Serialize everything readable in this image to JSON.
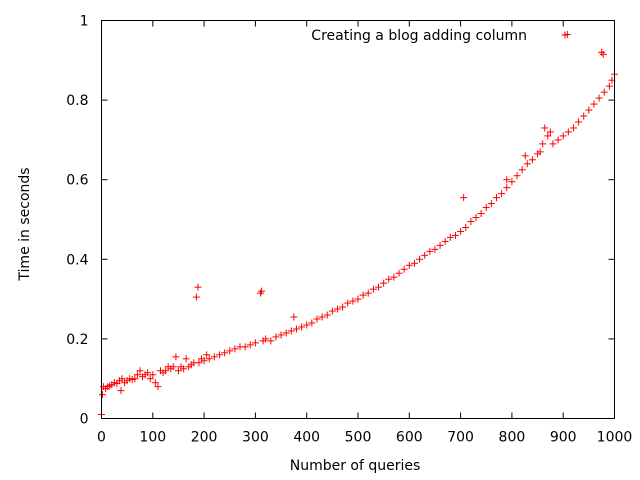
{
  "chart_data": {
    "type": "scatter",
    "title": "",
    "xlabel": "Number of queries",
    "ylabel": "Time in seconds",
    "xlim": [
      0,
      1000
    ],
    "ylim": [
      0,
      1
    ],
    "x_ticks": [
      0,
      100,
      200,
      300,
      400,
      500,
      600,
      700,
      800,
      900,
      1000
    ],
    "y_ticks": [
      0,
      0.2,
      0.4,
      0.6,
      0.8,
      1
    ],
    "x_tick_labels": [
      "0",
      "100",
      "200",
      "300",
      "400",
      "500",
      "600",
      "700",
      "800",
      "900",
      "1000"
    ],
    "y_tick_labels": [
      "0",
      "0.2",
      "0.4",
      "0.6",
      "0.8",
      "1"
    ],
    "grid": false,
    "legend_position": "top-right",
    "marker": "plus",
    "series": [
      {
        "name": "Creating a blog adding column",
        "color": "#ff0000",
        "points": [
          [
            0,
            0.01
          ],
          [
            2,
            0.06
          ],
          [
            4,
            0.08
          ],
          [
            8,
            0.075
          ],
          [
            12,
            0.08
          ],
          [
            16,
            0.082
          ],
          [
            20,
            0.085
          ],
          [
            25,
            0.09
          ],
          [
            30,
            0.088
          ],
          [
            35,
            0.095
          ],
          [
            38,
            0.07
          ],
          [
            40,
            0.1
          ],
          [
            45,
            0.09
          ],
          [
            50,
            0.095
          ],
          [
            55,
            0.1
          ],
          [
            60,
            0.098
          ],
          [
            65,
            0.1
          ],
          [
            70,
            0.11
          ],
          [
            75,
            0.12
          ],
          [
            80,
            0.105
          ],
          [
            85,
            0.11
          ],
          [
            90,
            0.115
          ],
          [
            95,
            0.1
          ],
          [
            100,
            0.11
          ],
          [
            105,
            0.09
          ],
          [
            110,
            0.08
          ],
          [
            115,
            0.12
          ],
          [
            120,
            0.115
          ],
          [
            125,
            0.12
          ],
          [
            130,
            0.13
          ],
          [
            135,
            0.125
          ],
          [
            140,
            0.13
          ],
          [
            145,
            0.155
          ],
          [
            150,
            0.12
          ],
          [
            155,
            0.13
          ],
          [
            160,
            0.125
          ],
          [
            165,
            0.15
          ],
          [
            170,
            0.13
          ],
          [
            175,
            0.135
          ],
          [
            180,
            0.14
          ],
          [
            185,
            0.305
          ],
          [
            188,
            0.33
          ],
          [
            190,
            0.14
          ],
          [
            195,
            0.15
          ],
          [
            200,
            0.145
          ],
          [
            205,
            0.16
          ],
          [
            210,
            0.15
          ],
          [
            220,
            0.155
          ],
          [
            230,
            0.16
          ],
          [
            240,
            0.165
          ],
          [
            250,
            0.17
          ],
          [
            260,
            0.175
          ],
          [
            270,
            0.18
          ],
          [
            280,
            0.18
          ],
          [
            290,
            0.185
          ],
          [
            300,
            0.19
          ],
          [
            310,
            0.315
          ],
          [
            312,
            0.32
          ],
          [
            315,
            0.195
          ],
          [
            320,
            0.2
          ],
          [
            330,
            0.195
          ],
          [
            340,
            0.205
          ],
          [
            350,
            0.21
          ],
          [
            360,
            0.215
          ],
          [
            370,
            0.22
          ],
          [
            375,
            0.255
          ],
          [
            380,
            0.225
          ],
          [
            390,
            0.23
          ],
          [
            400,
            0.235
          ],
          [
            410,
            0.24
          ],
          [
            420,
            0.25
          ],
          [
            430,
            0.255
          ],
          [
            440,
            0.26
          ],
          [
            450,
            0.27
          ],
          [
            460,
            0.275
          ],
          [
            470,
            0.28
          ],
          [
            480,
            0.29
          ],
          [
            490,
            0.295
          ],
          [
            500,
            0.3
          ],
          [
            510,
            0.31
          ],
          [
            520,
            0.315
          ],
          [
            530,
            0.325
          ],
          [
            540,
            0.33
          ],
          [
            550,
            0.34
          ],
          [
            560,
            0.35
          ],
          [
            570,
            0.355
          ],
          [
            580,
            0.365
          ],
          [
            590,
            0.375
          ],
          [
            600,
            0.385
          ],
          [
            610,
            0.39
          ],
          [
            620,
            0.4
          ],
          [
            630,
            0.41
          ],
          [
            640,
            0.42
          ],
          [
            650,
            0.425
          ],
          [
            660,
            0.435
          ],
          [
            670,
            0.445
          ],
          [
            680,
            0.455
          ],
          [
            690,
            0.46
          ],
          [
            700,
            0.47
          ],
          [
            706,
            0.555
          ],
          [
            710,
            0.48
          ],
          [
            720,
            0.495
          ],
          [
            730,
            0.505
          ],
          [
            740,
            0.515
          ],
          [
            750,
            0.53
          ],
          [
            760,
            0.54
          ],
          [
            770,
            0.555
          ],
          [
            780,
            0.565
          ],
          [
            790,
            0.58
          ],
          [
            790,
            0.6
          ],
          [
            800,
            0.595
          ],
          [
            810,
            0.61
          ],
          [
            820,
            0.625
          ],
          [
            826,
            0.66
          ],
          [
            830,
            0.64
          ],
          [
            840,
            0.65
          ],
          [
            850,
            0.665
          ],
          [
            855,
            0.67
          ],
          [
            860,
            0.69
          ],
          [
            864,
            0.73
          ],
          [
            870,
            0.71
          ],
          [
            875,
            0.72
          ],
          [
            880,
            0.69
          ],
          [
            890,
            0.7
          ],
          [
            900,
            0.71
          ],
          [
            908,
            0.965
          ],
          [
            910,
            0.72
          ],
          [
            920,
            0.73
          ],
          [
            930,
            0.745
          ],
          [
            940,
            0.76
          ],
          [
            950,
            0.775
          ],
          [
            960,
            0.79
          ],
          [
            970,
            0.805
          ],
          [
            975,
            0.92
          ],
          [
            978,
            0.915
          ],
          [
            980,
            0.82
          ],
          [
            990,
            0.835
          ],
          [
            995,
            0.85
          ],
          [
            1000,
            0.865
          ]
        ]
      }
    ]
  }
}
